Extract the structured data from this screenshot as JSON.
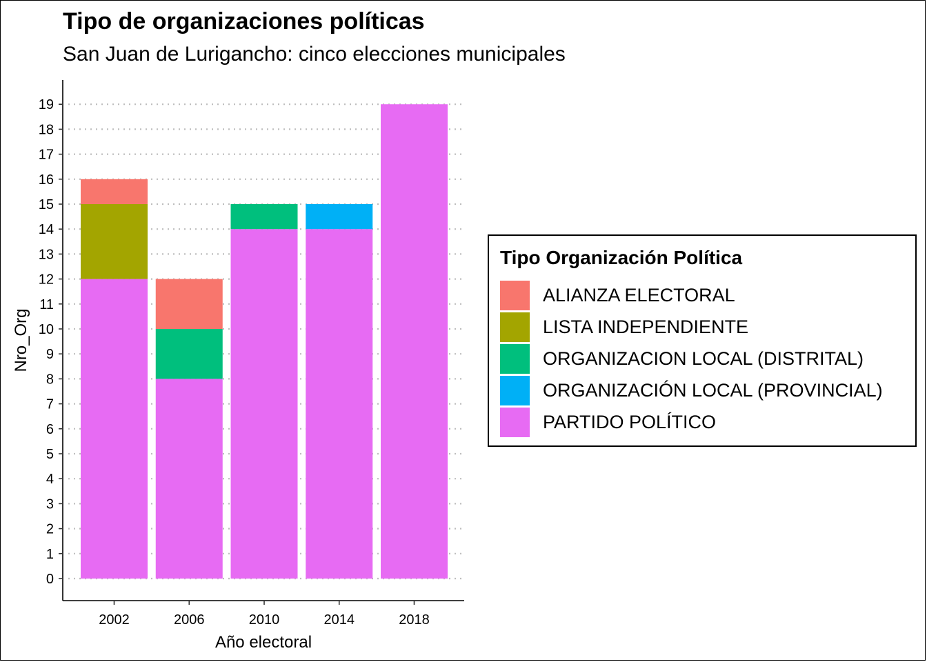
{
  "chart_data": {
    "type": "bar",
    "stacked": true,
    "title": "Tipo de organizaciones políticas",
    "subtitle": "San Juan de Lurigancho: cinco elecciones municipales",
    "xlabel": "Año electoral",
    "ylabel": "Nro_Org",
    "categories": [
      "2002",
      "2006",
      "2010",
      "2014",
      "2018"
    ],
    "ylim": [
      0,
      19
    ],
    "yticks": [
      "0",
      "1",
      "2",
      "3",
      "4",
      "5",
      "6",
      "7",
      "8",
      "9",
      "10",
      "11",
      "12",
      "13",
      "14",
      "15",
      "16",
      "17",
      "18",
      "19"
    ],
    "grid": "horizontal dotted",
    "legend": {
      "title": "Tipo Organización Política",
      "position": "right"
    },
    "series": [
      {
        "name": "PARTIDO POLÍTICO",
        "color": "#E76BF3",
        "values": [
          12,
          8,
          14,
          14,
          19
        ]
      },
      {
        "name": "ORGANIZACIÓN LOCAL (PROVINCIAL)",
        "color": "#00B0F6",
        "values": [
          0,
          0,
          0,
          1,
          0
        ]
      },
      {
        "name": "ORGANIZACION LOCAL (DISTRITAL)",
        "color": "#00BF7D",
        "values": [
          0,
          2,
          1,
          0,
          0
        ]
      },
      {
        "name": "LISTA INDEPENDIENTE",
        "color": "#A3A500",
        "values": [
          3,
          0,
          0,
          0,
          0
        ]
      },
      {
        "name": "ALIANZA ELECTORAL",
        "color": "#F8766D",
        "values": [
          1,
          2,
          0,
          0,
          0
        ]
      }
    ],
    "legend_order": [
      "ALIANZA ELECTORAL",
      "LISTA INDEPENDIENTE",
      "ORGANIZACION LOCAL (DISTRITAL)",
      "ORGANIZACIÓN LOCAL (PROVINCIAL)",
      "PARTIDO POLÍTICO"
    ]
  }
}
